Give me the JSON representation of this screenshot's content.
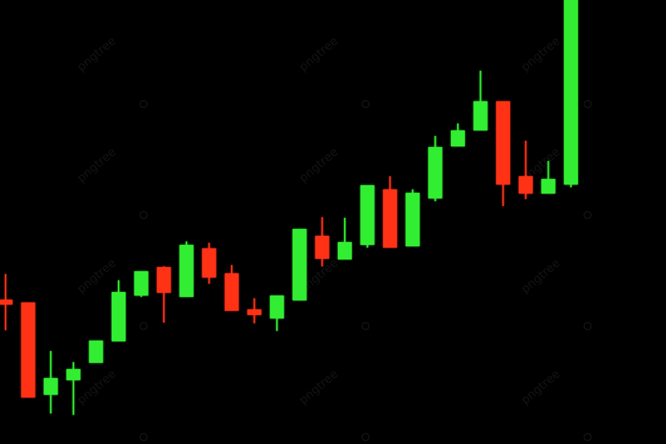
{
  "chart_data": {
    "type": "candlestick",
    "title": "",
    "xlabel": "",
    "ylabel": "",
    "ylim": [
      0,
      640
    ],
    "grid": false,
    "legend": "none",
    "colors": {
      "background": "#000000",
      "up": "#33ee33",
      "down": "#ff3319"
    },
    "candles": [
      {
        "open": 208,
        "close": 201,
        "high": 245,
        "low": 164,
        "dir": "down"
      },
      {
        "open": 204,
        "close": 67,
        "high": 204,
        "low": 67,
        "dir": "down"
      },
      {
        "open": 71,
        "close": 95,
        "high": 134,
        "low": 44,
        "dir": "up"
      },
      {
        "open": 92,
        "close": 108,
        "high": 118,
        "low": 42,
        "dir": "up"
      },
      {
        "open": 117,
        "close": 149,
        "high": 149,
        "low": 117,
        "dir": "up"
      },
      {
        "open": 148,
        "close": 219,
        "high": 236,
        "low": 148,
        "dir": "up"
      },
      {
        "open": 214,
        "close": 249,
        "high": 249,
        "low": 212,
        "dir": "up"
      },
      {
        "open": 255,
        "close": 218,
        "high": 256,
        "low": 175,
        "dir": "down"
      },
      {
        "open": 212,
        "close": 287,
        "high": 292,
        "low": 212,
        "dir": "up"
      },
      {
        "open": 282,
        "close": 240,
        "high": 290,
        "low": 231,
        "dir": "down"
      },
      {
        "open": 246,
        "close": 192,
        "high": 258,
        "low": 192,
        "dir": "down"
      },
      {
        "open": 194,
        "close": 186,
        "high": 210,
        "low": 174,
        "dir": "down"
      },
      {
        "open": 181,
        "close": 214,
        "high": 214,
        "low": 163,
        "dir": "up"
      },
      {
        "open": 207,
        "close": 310,
        "high": 310,
        "low": 207,
        "dir": "up"
      },
      {
        "open": 300,
        "close": 267,
        "high": 327,
        "low": 256,
        "dir": "down"
      },
      {
        "open": 266,
        "close": 291,
        "high": 326,
        "low": 266,
        "dir": "up"
      },
      {
        "open": 287,
        "close": 373,
        "high": 373,
        "low": 283,
        "dir": "up"
      },
      {
        "open": 367,
        "close": 283,
        "high": 386,
        "low": 283,
        "dir": "down"
      },
      {
        "open": 285,
        "close": 362,
        "high": 367,
        "low": 285,
        "dir": "up"
      },
      {
        "open": 354,
        "close": 428,
        "high": 444,
        "low": 350,
        "dir": "up"
      },
      {
        "open": 429,
        "close": 452,
        "high": 462,
        "low": 429,
        "dir": "up"
      },
      {
        "open": 452,
        "close": 494,
        "high": 538,
        "low": 452,
        "dir": "up"
      },
      {
        "open": 494,
        "close": 374,
        "high": 494,
        "low": 343,
        "dir": "down"
      },
      {
        "open": 386,
        "close": 361,
        "high": 437,
        "low": 353,
        "dir": "down"
      },
      {
        "open": 361,
        "close": 382,
        "high": 408,
        "low": 361,
        "dir": "up"
      },
      {
        "open": 374,
        "close": 645,
        "high": 645,
        "low": 370,
        "dir": "up"
      }
    ]
  },
  "watermark": {
    "text": "pngtree"
  }
}
